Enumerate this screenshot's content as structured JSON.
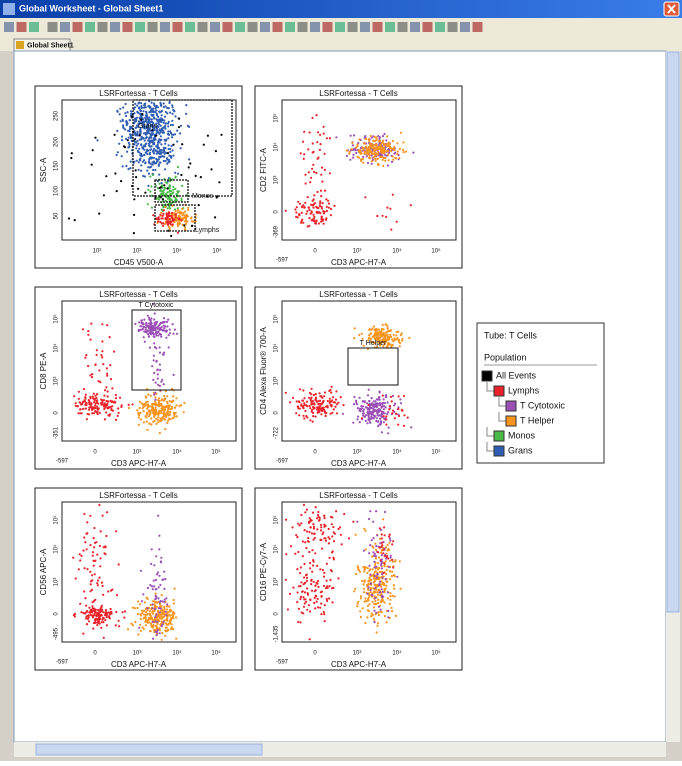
{
  "window": {
    "title": "Global Worksheet - Global Sheet1",
    "tab": "Global Sheet1"
  },
  "plots": [
    {
      "title": "LSRFortessa - T Cells",
      "x_label": "CD45 V500-A",
      "y_label": "SSC-A",
      "x_ticks": [
        "10²",
        "10³",
        "10⁴",
        "10⁵"
      ],
      "y_ticks": [
        "50",
        "100",
        "150",
        "200",
        "250"
      ],
      "gates": [
        "Grans",
        "Monos",
        "Lymphs"
      ]
    },
    {
      "title": "LSRFortessa - T Cells",
      "x_label": "CD3 APC-H7-A",
      "y_label": "CD2 FITC-A",
      "x_ticks": [
        "-597",
        "0",
        "10³",
        "10⁴",
        "10⁵"
      ],
      "y_ticks": [
        "-369",
        "0",
        "10³",
        "10⁴",
        "10⁵"
      ],
      "gates": []
    },
    {
      "title": "LSRFortessa - T Cells",
      "x_label": "CD3 APC-H7-A",
      "y_label": "CD8 PE-A",
      "x_ticks": [
        "-597",
        "0",
        "10³",
        "10⁴",
        "10⁵"
      ],
      "y_ticks": [
        "-351",
        "0",
        "10³",
        "10⁴",
        "10⁵"
      ],
      "gates": [
        "T Cytotoxic"
      ]
    },
    {
      "title": "LSRFortessa - T Cells",
      "x_label": "CD3 APC-H7-A",
      "y_label": "CD4 Alexa Fluor® 700-A",
      "x_ticks": [
        "-597",
        "0",
        "10³",
        "10⁴",
        "10⁵"
      ],
      "y_ticks": [
        "-722",
        "0",
        "10³",
        "10⁴",
        "10⁵"
      ],
      "gates": [
        "T Helper"
      ]
    },
    {
      "title": "LSRFortessa - T Cells",
      "x_label": "CD3 APC-H7-A",
      "y_label": "CD56 APC-A",
      "x_ticks": [
        "-597",
        "0",
        "10³",
        "10⁴",
        "10⁵"
      ],
      "y_ticks": [
        "-495",
        "0",
        "10³",
        "10⁴",
        "10⁵"
      ],
      "gates": []
    },
    {
      "title": "LSRFortessa - T Cells",
      "x_label": "CD3 APC-H7-A",
      "y_label": "CD16 PE-Cy7-A",
      "x_ticks": [
        "-597",
        "0",
        "10³",
        "10⁴",
        "10⁵"
      ],
      "y_ticks": [
        "-1,435",
        "0",
        "10³",
        "10⁴",
        "10⁵"
      ],
      "gates": []
    }
  ],
  "legend": {
    "tube": "Tube:  T Cells",
    "heading": "Population",
    "items": [
      {
        "name": "All Events",
        "color": "#000000"
      },
      {
        "name": "Lymphs",
        "color": "#e8232a"
      },
      {
        "name": "T Cytotoxic",
        "color": "#9b4fb5"
      },
      {
        "name": "T Helper",
        "color": "#f7941d"
      },
      {
        "name": "Monos",
        "color": "#4cb848"
      },
      {
        "name": "Grans",
        "color": "#2f5db1"
      }
    ]
  }
}
